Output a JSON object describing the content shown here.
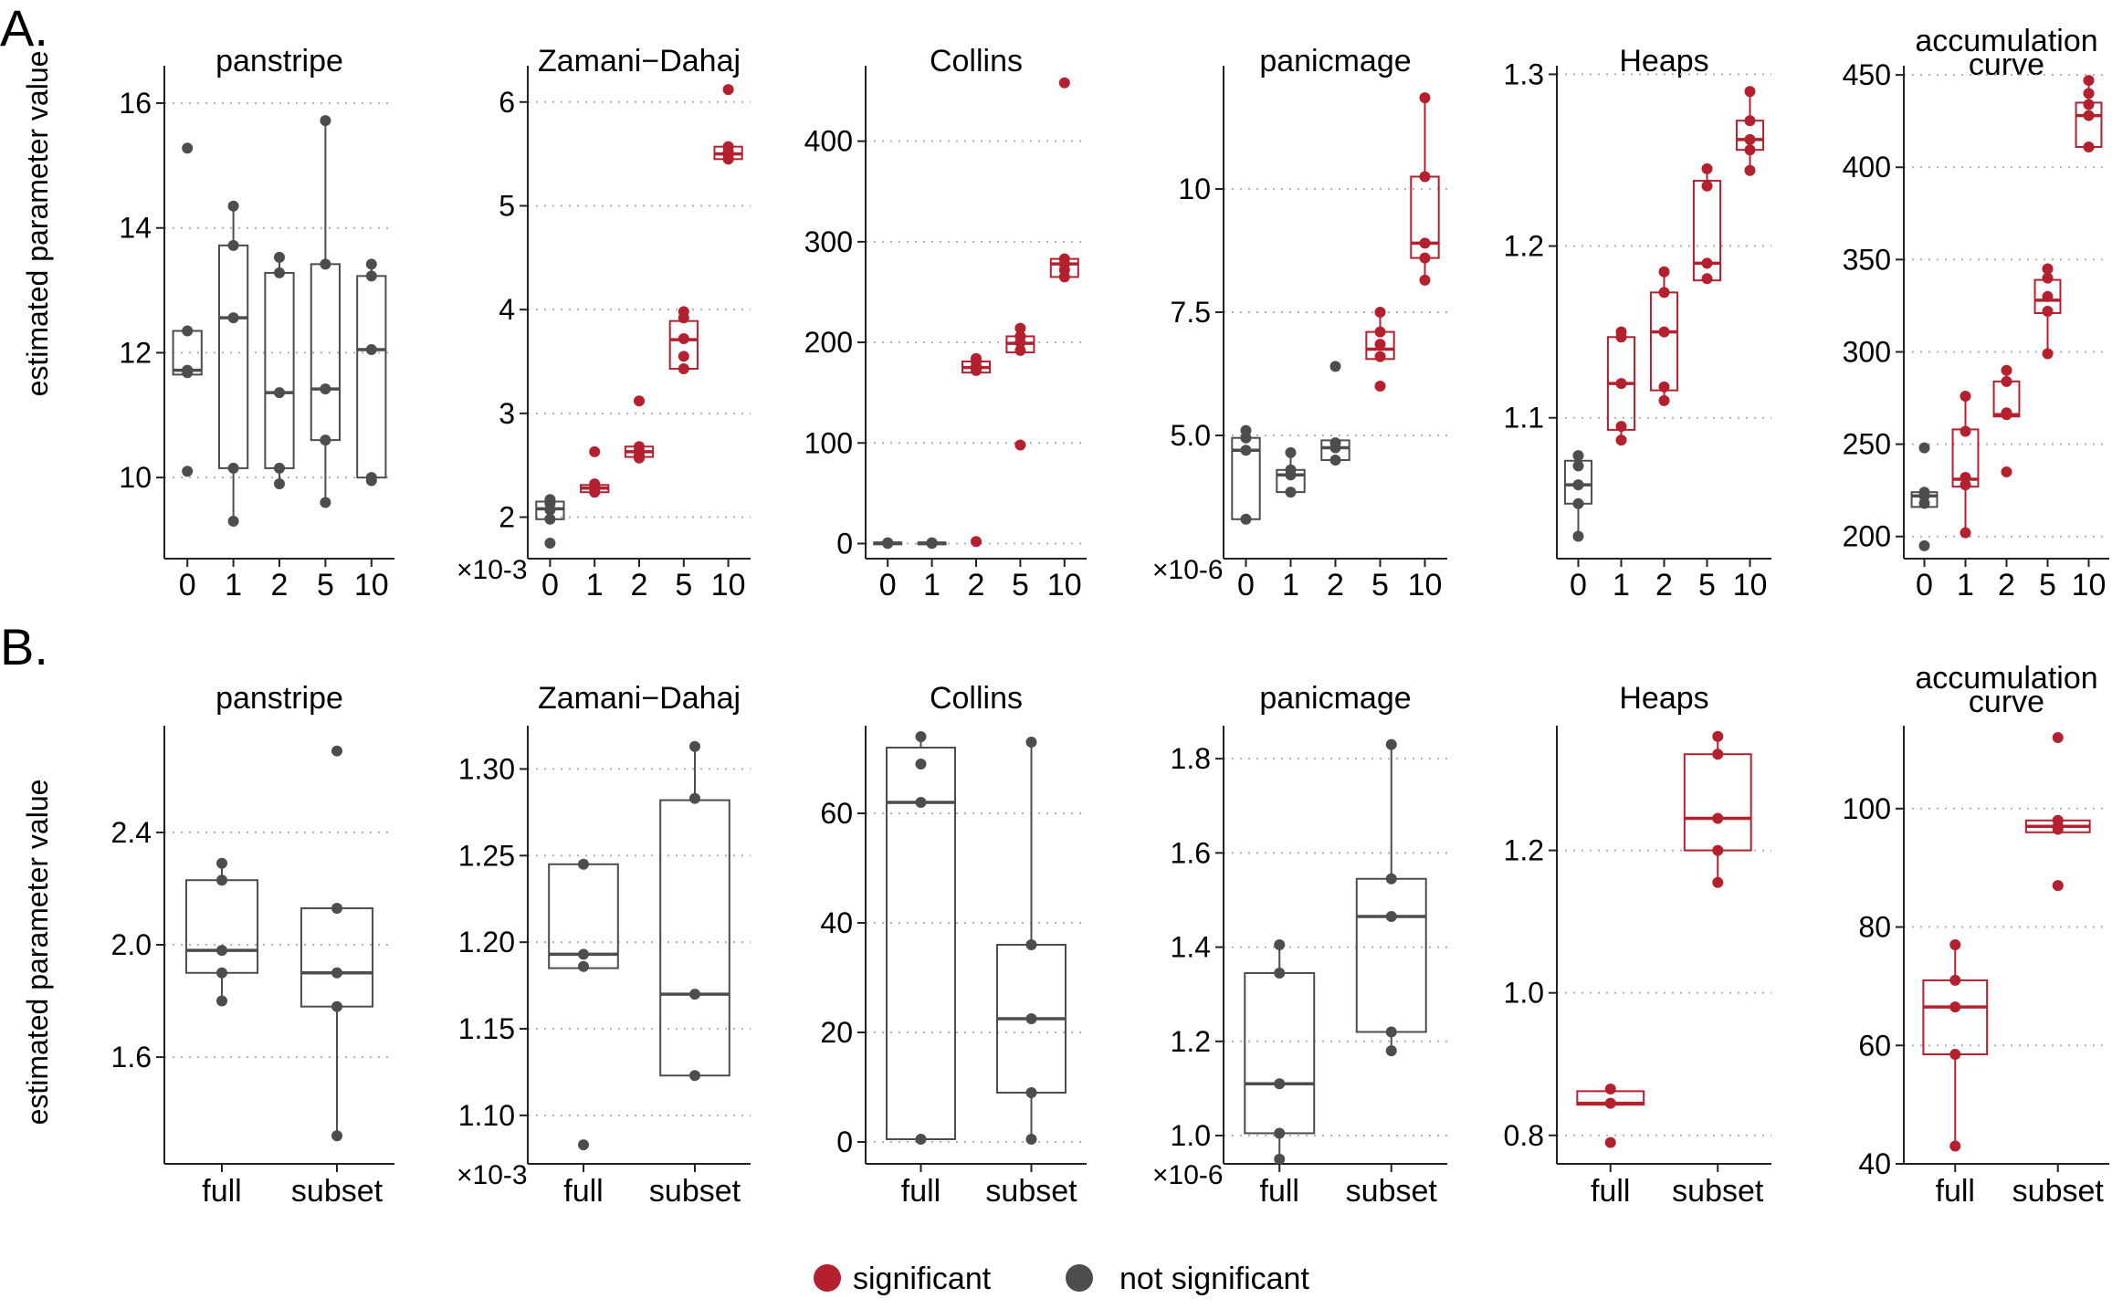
{
  "panel_labels": [
    "A.",
    "B."
  ],
  "y_axis_label": "estimated parameter value",
  "legend": {
    "items": [
      {
        "label": "significant",
        "color": "#b5202e"
      },
      {
        "label": "not significant",
        "color": "#4d4d4d"
      }
    ]
  },
  "colors": {
    "significant": "#b5202e",
    "not_significant": "#4d4d4d",
    "grid": "#b0b0b0",
    "axis": "#222222"
  },
  "chart_data": [
    {
      "type": "box",
      "panel": "A",
      "title": "panstripe",
      "ylim": [
        8.7,
        16.6
      ],
      "yticks": [
        10,
        12,
        14,
        16
      ],
      "ytick_labels": [
        "10",
        "12",
        "14",
        "16"
      ],
      "multiplier": "",
      "categories": [
        "0",
        "1",
        "2",
        "5",
        "10"
      ],
      "groups": [
        {
          "name": "0",
          "sig": false,
          "q1": 11.65,
          "median": 11.72,
          "q3": 12.35,
          "wmin": 11.65,
          "wmax": 12.35,
          "points": [
            10.1,
            11.68,
            11.72,
            12.35,
            15.28
          ]
        },
        {
          "name": "1",
          "sig": false,
          "q1": 10.15,
          "median": 12.56,
          "q3": 13.72,
          "wmin": 9.3,
          "wmax": 14.35,
          "points": [
            9.3,
            10.15,
            12.56,
            13.72,
            14.35
          ]
        },
        {
          "name": "2",
          "sig": false,
          "q1": 10.15,
          "median": 11.36,
          "q3": 13.28,
          "wmin": 9.9,
          "wmax": 13.53,
          "points": [
            9.9,
            10.15,
            11.36,
            13.28,
            13.53
          ]
        },
        {
          "name": "5",
          "sig": false,
          "q1": 10.6,
          "median": 11.42,
          "q3": 13.42,
          "wmin": 9.6,
          "wmax": 15.72,
          "points": [
            9.6,
            10.6,
            11.42,
            13.42,
            15.72
          ]
        },
        {
          "name": "10",
          "sig": false,
          "q1": 10.0,
          "median": 12.05,
          "q3": 13.23,
          "wmin": 9.95,
          "wmax": 13.42,
          "points": [
            9.95,
            10.0,
            12.05,
            13.23,
            13.42
          ]
        }
      ]
    },
    {
      "type": "box",
      "panel": "A",
      "title": "Zamani−Dahaj",
      "ylim": [
        1.6,
        6.35
      ],
      "yticks": [
        2,
        3,
        4,
        5,
        6
      ],
      "ytick_labels": [
        "2",
        "3",
        "4",
        "5",
        "6"
      ],
      "multiplier": "×10-3",
      "categories": [
        "0",
        "1",
        "2",
        "5",
        "10"
      ],
      "groups": [
        {
          "name": "0",
          "sig": false,
          "q1": 1.98,
          "median": 2.08,
          "q3": 2.15,
          "wmin": 1.98,
          "wmax": 2.17,
          "points": [
            1.75,
            1.98,
            2.07,
            2.13,
            2.17
          ]
        },
        {
          "name": "1",
          "sig": true,
          "q1": 2.24,
          "median": 2.28,
          "q3": 2.31,
          "wmin": 2.24,
          "wmax": 2.32,
          "points": [
            2.24,
            2.27,
            2.3,
            2.32,
            2.63
          ]
        },
        {
          "name": "2",
          "sig": true,
          "q1": 2.58,
          "median": 2.63,
          "q3": 2.68,
          "wmin": 2.58,
          "wmax": 2.68,
          "points": [
            2.57,
            2.6,
            2.64,
            2.68,
            3.12
          ]
        },
        {
          "name": "5",
          "sig": true,
          "q1": 3.43,
          "median": 3.71,
          "q3": 3.89,
          "wmin": 3.43,
          "wmax": 3.98,
          "points": [
            3.43,
            3.55,
            3.72,
            3.92,
            3.98
          ]
        },
        {
          "name": "10",
          "sig": true,
          "q1": 5.45,
          "median": 5.5,
          "q3": 5.57,
          "wmin": 5.45,
          "wmax": 5.57,
          "points": [
            5.45,
            5.49,
            5.52,
            5.57,
            6.12
          ]
        }
      ]
    },
    {
      "type": "box",
      "panel": "A",
      "title": "Collins",
      "ylim": [
        -15,
        475
      ],
      "yticks": [
        0,
        100,
        200,
        300,
        400
      ],
      "ytick_labels": [
        "0",
        "100",
        "200",
        "300",
        "400"
      ],
      "multiplier": "",
      "categories": [
        "0",
        "1",
        "2",
        "5",
        "10"
      ],
      "groups": [
        {
          "name": "0",
          "sig": false,
          "q1": 0,
          "median": 0.5,
          "q3": 1,
          "wmin": 0,
          "wmax": 1,
          "points": [
            0.2,
            0.5,
            0.8
          ]
        },
        {
          "name": "1",
          "sig": false,
          "q1": 0,
          "median": 0.5,
          "q3": 1,
          "wmin": 0,
          "wmax": 1,
          "points": [
            0.2,
            0.5,
            0.8
          ]
        },
        {
          "name": "2",
          "sig": true,
          "q1": 170,
          "median": 175,
          "q3": 181,
          "wmin": 170,
          "wmax": 184,
          "points": [
            2,
            172,
            176,
            181,
            184
          ]
        },
        {
          "name": "5",
          "sig": true,
          "q1": 190,
          "median": 199,
          "q3": 206,
          "wmin": 190,
          "wmax": 214,
          "points": [
            98,
            192,
            200,
            206,
            214
          ]
        },
        {
          "name": "10",
          "sig": true,
          "q1": 265,
          "median": 278,
          "q3": 283,
          "wmin": 265,
          "wmax": 283,
          "points": [
            265,
            272,
            278,
            283,
            458
          ]
        }
      ]
    },
    {
      "type": "box",
      "panel": "A",
      "title": "panicmage",
      "ylim": [
        2.5,
        12.5
      ],
      "yticks": [
        5.0,
        7.5,
        10.0
      ],
      "ytick_labels": [
        "5.0",
        "7.5",
        "10"
      ],
      "multiplier": "×10-6",
      "categories": [
        "0",
        "1",
        "2",
        "5",
        "10"
      ],
      "groups": [
        {
          "name": "0",
          "sig": false,
          "q1": 3.3,
          "median": 4.7,
          "q3": 4.95,
          "wmin": 3.3,
          "wmax": 5.1,
          "points": [
            3.3,
            4.7,
            4.95,
            5.1
          ]
        },
        {
          "name": "1",
          "sig": false,
          "q1": 3.85,
          "median": 4.2,
          "q3": 4.3,
          "wmin": 3.85,
          "wmax": 4.65,
          "points": [
            3.85,
            4.2,
            4.3,
            4.65
          ]
        },
        {
          "name": "2",
          "sig": false,
          "q1": 4.5,
          "median": 4.75,
          "q3": 4.9,
          "wmin": 4.5,
          "wmax": 4.9,
          "points": [
            4.5,
            4.75,
            4.85,
            6.4
          ]
        },
        {
          "name": "5",
          "sig": true,
          "q1": 6.55,
          "median": 6.75,
          "q3": 7.1,
          "wmin": 6.55,
          "wmax": 7.5,
          "points": [
            6.0,
            6.6,
            6.85,
            7.1,
            7.5
          ]
        },
        {
          "name": "10",
          "sig": true,
          "q1": 8.6,
          "median": 8.9,
          "q3": 10.25,
          "wmin": 8.15,
          "wmax": 11.85,
          "points": [
            8.15,
            8.6,
            8.9,
            10.25,
            11.85
          ]
        }
      ]
    },
    {
      "type": "box",
      "panel": "A",
      "title": "Heaps",
      "ylim": [
        1.018,
        1.305
      ],
      "yticks": [
        1.1,
        1.2,
        1.3
      ],
      "ytick_labels": [
        "1.1",
        "1.2",
        "1.3"
      ],
      "multiplier": "",
      "categories": [
        "0",
        "1",
        "2",
        "5",
        "10"
      ],
      "groups": [
        {
          "name": "0",
          "sig": false,
          "q1": 1.05,
          "median": 1.061,
          "q3": 1.075,
          "wmin": 1.031,
          "wmax": 1.078,
          "points": [
            1.031,
            1.05,
            1.061,
            1.072,
            1.078
          ]
        },
        {
          "name": "1",
          "sig": true,
          "q1": 1.093,
          "median": 1.12,
          "q3": 1.147,
          "wmin": 1.087,
          "wmax": 1.15,
          "points": [
            1.087,
            1.095,
            1.12,
            1.147,
            1.15
          ]
        },
        {
          "name": "2",
          "sig": true,
          "q1": 1.116,
          "median": 1.15,
          "q3": 1.173,
          "wmin": 1.11,
          "wmax": 1.185,
          "points": [
            1.11,
            1.118,
            1.15,
            1.173,
            1.185
          ]
        },
        {
          "name": "5",
          "sig": true,
          "q1": 1.18,
          "median": 1.19,
          "q3": 1.238,
          "wmin": 1.18,
          "wmax": 1.245,
          "points": [
            1.181,
            1.19,
            1.235,
            1.245
          ]
        },
        {
          "name": "10",
          "sig": true,
          "q1": 1.256,
          "median": 1.262,
          "q3": 1.273,
          "wmin": 1.244,
          "wmax": 1.29,
          "points": [
            1.244,
            1.256,
            1.262,
            1.273,
            1.29
          ]
        }
      ]
    },
    {
      "type": "box",
      "panel": "A",
      "title": "accumulation\ncurve",
      "ylim": [
        188,
        455
      ],
      "yticks": [
        200,
        250,
        300,
        350,
        400,
        450
      ],
      "ytick_labels": [
        "200",
        "250",
        "300",
        "350",
        "400",
        "450"
      ],
      "multiplier": "",
      "categories": [
        "0",
        "1",
        "2",
        "5",
        "10"
      ],
      "groups": [
        {
          "name": "0",
          "sig": false,
          "q1": 216,
          "median": 222,
          "q3": 224,
          "wmin": 216,
          "wmax": 224,
          "points": [
            195,
            218,
            222,
            224,
            248
          ]
        },
        {
          "name": "1",
          "sig": true,
          "q1": 227,
          "median": 231,
          "q3": 258,
          "wmin": 202,
          "wmax": 276,
          "points": [
            202,
            228,
            232,
            257,
            276
          ]
        },
        {
          "name": "2",
          "sig": true,
          "q1": 265,
          "median": 266,
          "q3": 284,
          "wmin": 265,
          "wmax": 290,
          "points": [
            235,
            266,
            267,
            284,
            290
          ]
        },
        {
          "name": "5",
          "sig": true,
          "q1": 321,
          "median": 328,
          "q3": 339,
          "wmin": 299,
          "wmax": 345,
          "points": [
            299,
            322,
            330,
            340,
            345
          ]
        },
        {
          "name": "10",
          "sig": true,
          "q1": 411,
          "median": 428,
          "q3": 435,
          "wmin": 411,
          "wmax": 447,
          "points": [
            411,
            428,
            434,
            440,
            447
          ]
        }
      ]
    },
    {
      "type": "box",
      "panel": "B",
      "title": "panstripe",
      "ylim": [
        1.22,
        2.78
      ],
      "yticks": [
        1.6,
        2.0,
        2.4
      ],
      "ytick_labels": [
        "1.6",
        "2.0",
        "2.4"
      ],
      "multiplier": "",
      "categories": [
        "full",
        "subset"
      ],
      "groups": [
        {
          "name": "full",
          "sig": false,
          "q1": 1.9,
          "median": 1.98,
          "q3": 2.23,
          "wmin": 1.8,
          "wmax": 2.29,
          "points": [
            1.8,
            1.9,
            1.98,
            2.23,
            2.29
          ]
        },
        {
          "name": "subset",
          "sig": false,
          "q1": 1.78,
          "median": 1.9,
          "q3": 2.13,
          "wmin": 1.32,
          "wmax": 2.13,
          "points": [
            1.32,
            1.78,
            1.9,
            2.13,
            2.69
          ]
        }
      ]
    },
    {
      "type": "box",
      "panel": "B",
      "title": "Zamani−Dahaj",
      "ylim": [
        1.072,
        1.325
      ],
      "yticks": [
        1.1,
        1.15,
        1.2,
        1.25,
        1.3
      ],
      "ytick_labels": [
        "1.10",
        "1.15",
        "1.20",
        "1.25",
        "1.30"
      ],
      "multiplier": "×10-3",
      "categories": [
        "full",
        "subset"
      ],
      "groups": [
        {
          "name": "full",
          "sig": false,
          "q1": 1.185,
          "median": 1.193,
          "q3": 1.245,
          "wmin": 1.185,
          "wmax": 1.245,
          "points": [
            1.083,
            1.186,
            1.193,
            1.245
          ]
        },
        {
          "name": "subset",
          "sig": false,
          "q1": 1.123,
          "median": 1.17,
          "q3": 1.282,
          "wmin": 1.123,
          "wmax": 1.313,
          "points": [
            1.123,
            1.17,
            1.283,
            1.313
          ]
        }
      ]
    },
    {
      "type": "box",
      "panel": "B",
      "title": "Collins",
      "ylim": [
        -4,
        76
      ],
      "yticks": [
        0,
        20,
        40,
        60
      ],
      "ytick_labels": [
        "0",
        "20",
        "40",
        "60"
      ],
      "multiplier": "",
      "categories": [
        "full",
        "subset"
      ],
      "groups": [
        {
          "name": "full",
          "sig": false,
          "q1": 0.5,
          "median": 62,
          "q3": 72,
          "wmin": 0.5,
          "wmax": 74,
          "points": [
            0.5,
            62,
            69,
            74
          ]
        },
        {
          "name": "subset",
          "sig": false,
          "q1": 9,
          "median": 22.5,
          "q3": 36,
          "wmin": 0.5,
          "wmax": 73,
          "points": [
            0.5,
            9,
            22.5,
            36,
            73
          ]
        }
      ]
    },
    {
      "type": "box",
      "panel": "B",
      "title": "panicmage",
      "ylim": [
        0.94,
        1.87
      ],
      "yticks": [
        1.0,
        1.2,
        1.4,
        1.6,
        1.8
      ],
      "ytick_labels": [
        "1.0",
        "1.2",
        "1.4",
        "1.6",
        "1.8"
      ],
      "multiplier": "×10-6",
      "categories": [
        "full",
        "subset"
      ],
      "groups": [
        {
          "name": "full",
          "sig": false,
          "q1": 1.005,
          "median": 1.11,
          "q3": 1.345,
          "wmin": 0.95,
          "wmax": 1.405,
          "points": [
            0.95,
            1.005,
            1.11,
            1.345,
            1.405
          ]
        },
        {
          "name": "subset",
          "sig": false,
          "q1": 1.22,
          "median": 1.465,
          "q3": 1.545,
          "wmin": 1.18,
          "wmax": 1.83,
          "points": [
            1.18,
            1.22,
            1.465,
            1.545,
            1.83
          ]
        }
      ]
    },
    {
      "type": "box",
      "panel": "B",
      "title": "Heaps",
      "ylim": [
        0.76,
        1.375
      ],
      "yticks": [
        0.8,
        1.0,
        1.2
      ],
      "ytick_labels": [
        "0.8",
        "1.0",
        "1.2"
      ],
      "multiplier": "",
      "categories": [
        "full",
        "subset"
      ],
      "groups": [
        {
          "name": "full",
          "sig": true,
          "q1": 0.843,
          "median": 0.845,
          "q3": 0.862,
          "wmin": 0.843,
          "wmax": 0.862,
          "points": [
            0.79,
            0.845,
            0.865
          ]
        },
        {
          "name": "subset",
          "sig": true,
          "q1": 1.2,
          "median": 1.245,
          "q3": 1.335,
          "wmin": 1.155,
          "wmax": 1.36,
          "points": [
            1.155,
            1.2,
            1.245,
            1.335,
            1.36
          ]
        }
      ]
    },
    {
      "type": "box",
      "panel": "B",
      "title": "accumulation\ncurve",
      "ylim": [
        40,
        114
      ],
      "yticks": [
        40,
        60,
        80,
        100
      ],
      "ytick_labels": [
        "40",
        "60",
        "80",
        "100"
      ],
      "multiplier": "",
      "categories": [
        "full",
        "subset"
      ],
      "groups": [
        {
          "name": "full",
          "sig": true,
          "q1": 58.5,
          "median": 66.5,
          "q3": 71,
          "wmin": 43,
          "wmax": 77,
          "points": [
            43,
            58.5,
            66.5,
            71,
            77
          ]
        },
        {
          "name": "subset",
          "sig": true,
          "q1": 96,
          "median": 97,
          "q3": 98,
          "wmin": 96,
          "wmax": 98,
          "points": [
            87,
            96.5,
            97,
            98,
            112
          ]
        }
      ]
    }
  ]
}
